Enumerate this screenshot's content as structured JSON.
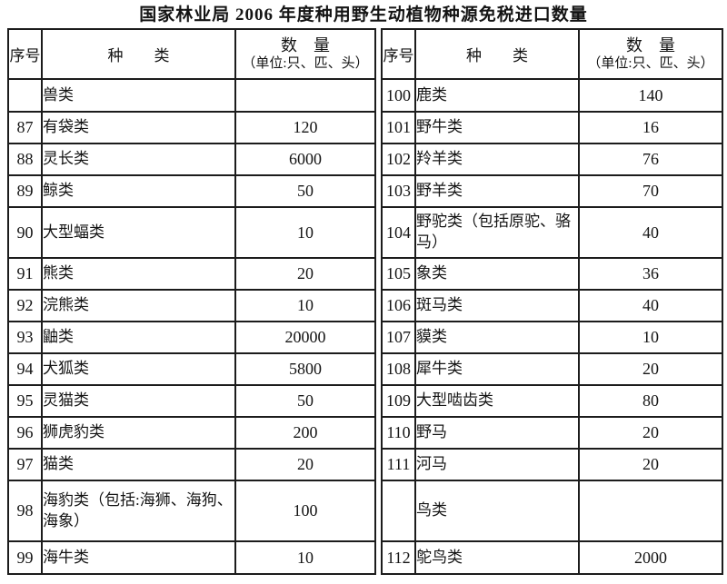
{
  "title": "国家林业局 2006 年度种用野生动植物种源免税进口数量",
  "table": {
    "header": {
      "no": "序号",
      "species": "种　　类",
      "qty_line1": "数　量",
      "qty_line2": "（单位:只、匹、头）"
    },
    "left_rows": [
      {
        "no": "",
        "species": "兽类",
        "qty": ""
      },
      {
        "no": "87",
        "species": "有袋类",
        "qty": "120"
      },
      {
        "no": "88",
        "species": "灵长类",
        "qty": "6000"
      },
      {
        "no": "89",
        "species": "鲸类",
        "qty": "50"
      },
      {
        "no": "90",
        "species": "大型蝠类",
        "qty": "10"
      },
      {
        "no": "91",
        "species": "熊类",
        "qty": "20"
      },
      {
        "no": "92",
        "species": "浣熊类",
        "qty": "10"
      },
      {
        "no": "93",
        "species": "鼬类",
        "qty": "20000"
      },
      {
        "no": "94",
        "species": "犬狐类",
        "qty": "5800"
      },
      {
        "no": "95",
        "species": "灵猫类",
        "qty": "50"
      },
      {
        "no": "96",
        "species": "狮虎豹类",
        "qty": "200"
      },
      {
        "no": "97",
        "species": "猫类",
        "qty": "20"
      },
      {
        "no": "98",
        "species": "海豹类（包括:海狮、海狗、海象）",
        "qty": "100"
      },
      {
        "no": "99",
        "species": "海牛类",
        "qty": "10"
      }
    ],
    "right_rows": [
      {
        "no": "100",
        "species": "鹿类",
        "qty": "140"
      },
      {
        "no": "101",
        "species": "野牛类",
        "qty": "16"
      },
      {
        "no": "102",
        "species": "羚羊类",
        "qty": "76"
      },
      {
        "no": "103",
        "species": "野羊类",
        "qty": "70"
      },
      {
        "no": "104",
        "species": "野驼类（包括原驼、骆马）",
        "qty": "40"
      },
      {
        "no": "105",
        "species": "象类",
        "qty": "36"
      },
      {
        "no": "106",
        "species": "斑马类",
        "qty": "40"
      },
      {
        "no": "107",
        "species": "貘类",
        "qty": "10"
      },
      {
        "no": "108",
        "species": "犀牛类",
        "qty": "20"
      },
      {
        "no": "109",
        "species": "大型啮齿类",
        "qty": "80"
      },
      {
        "no": "110",
        "species": "野马",
        "qty": "20"
      },
      {
        "no": "111",
        "species": "河马",
        "qty": "20"
      },
      {
        "no": "",
        "species": "鸟类",
        "qty": ""
      },
      {
        "no": "112",
        "species": "鸵鸟类",
        "qty": "2000"
      }
    ]
  }
}
